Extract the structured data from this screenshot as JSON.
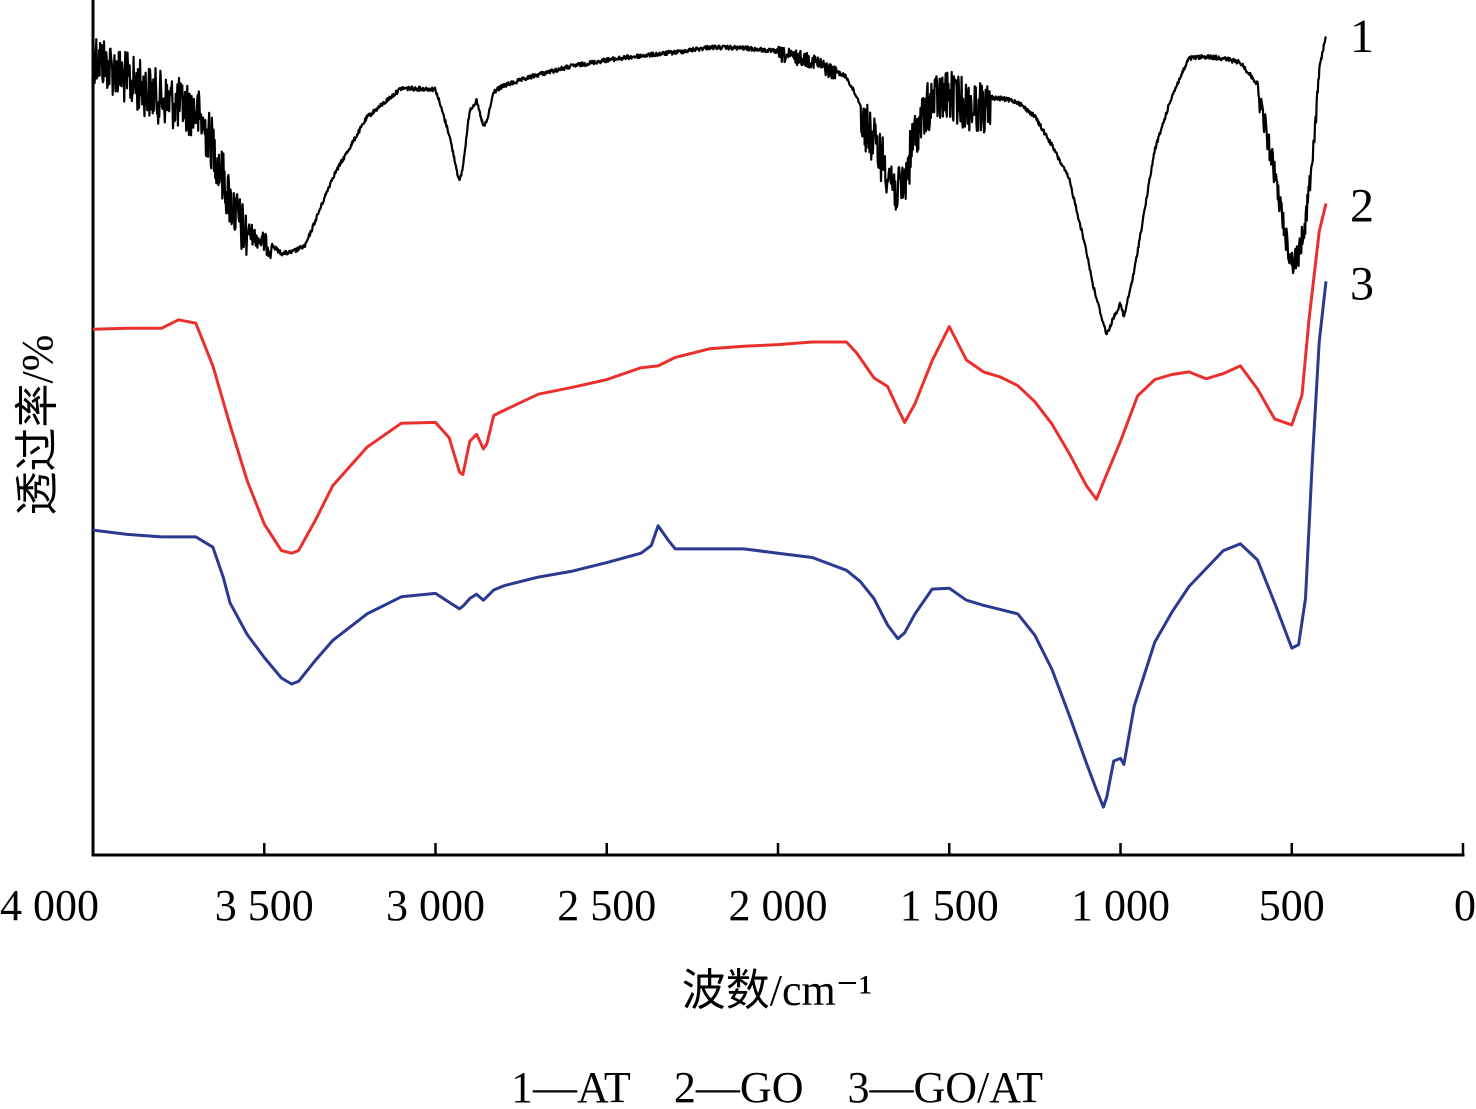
{
  "chart_data": {
    "type": "line",
    "xlabel": "波数/cm⁻¹",
    "ylabel": "透过率/%",
    "xlim": [
      4000,
      0
    ],
    "x_reversed": true,
    "xticks": [
      4000,
      3500,
      3000,
      2500,
      2000,
      1500,
      1000,
      500,
      0
    ],
    "xtick_labels": [
      "4 000",
      "3 500",
      "3 000",
      "2 500",
      "2 000",
      "1 500",
      "1 000",
      "500",
      "0"
    ],
    "ylim": [
      0,
      100
    ],
    "yticks_shown": false,
    "grid": false,
    "legend_text": "1—AT    2—GO    3—GO/AT",
    "legend_placement": "bottom-center",
    "series": [
      {
        "name": "1",
        "label": "1",
        "color": "#000000",
        "noisy": true,
        "x": [
          4000,
          3900,
          3800,
          3700,
          3650,
          3600,
          3550,
          3500,
          3450,
          3420,
          3380,
          3300,
          3200,
          3100,
          3000,
          2960,
          2930,
          2920,
          2900,
          2880,
          2860,
          2850,
          2830,
          2800,
          2700,
          2600,
          2500,
          2400,
          2300,
          2200,
          2100,
          2000,
          1900,
          1800,
          1760,
          1700,
          1680,
          1650,
          1630,
          1600,
          1550,
          1500,
          1450,
          1400,
          1350,
          1300,
          1250,
          1200,
          1150,
          1100,
          1080,
          1050,
          1040,
          1020,
          1000,
          990,
          960,
          900,
          850,
          800,
          750,
          700,
          650,
          600,
          550,
          520,
          500,
          480,
          460,
          440,
          420,
          400
        ],
        "y": [
          95.2,
          92.3,
          90.1,
          88.6,
          84.6,
          78.1,
          73.6,
          72.2,
          70.5,
          70.6,
          71.4,
          79.4,
          86.4,
          89.8,
          89.7,
          84.4,
          78.8,
          80.6,
          87.3,
          88.3,
          85.3,
          85.9,
          89.4,
          90.1,
          91.4,
          92.4,
          93.1,
          93.6,
          94.0,
          94.6,
          94.5,
          94.1,
          93.4,
          91.1,
          88.0,
          83.3,
          81.7,
          78.8,
          80.2,
          86.0,
          89.8,
          90.3,
          89.3,
          88.8,
          88.6,
          88.2,
          86.5,
          83.1,
          79.2,
          70.9,
          66.7,
          62.3,
          61.0,
          63.0,
          64.6,
          63.0,
          68.4,
          82.6,
          88.9,
          93.3,
          93.5,
          93.3,
          92.8,
          90.3,
          80.5,
          73.6,
          70.0,
          70.8,
          74.9,
          82.1,
          92.0,
          96.0
        ]
      },
      {
        "name": "2",
        "label": "2",
        "color": "#e8312f",
        "noisy": false,
        "x": [
          4000,
          3900,
          3800,
          3750,
          3700,
          3650,
          3600,
          3550,
          3500,
          3450,
          3420,
          3400,
          3350,
          3300,
          3200,
          3100,
          3000,
          2960,
          2930,
          2920,
          2900,
          2880,
          2860,
          2850,
          2830,
          2800,
          2700,
          2600,
          2500,
          2400,
          2350,
          2300,
          2200,
          2100,
          2000,
          1900,
          1800,
          1770,
          1720,
          1680,
          1650,
          1630,
          1600,
          1550,
          1500,
          1450,
          1400,
          1350,
          1300,
          1250,
          1200,
          1150,
          1100,
          1070,
          1050,
          1000,
          950,
          900,
          850,
          800,
          750,
          700,
          650,
          600,
          550,
          500,
          470,
          450,
          420,
          400
        ],
        "y": [
          61.5,
          61.6,
          61.6,
          62.6,
          62.2,
          57.2,
          50.3,
          43.8,
          38.7,
          35.6,
          35.3,
          35.6,
          39.2,
          43.2,
          47.7,
          50.5,
          50.6,
          48.8,
          44.8,
          44.5,
          48.4,
          49.2,
          47.5,
          48.1,
          51.4,
          52.0,
          53.9,
          54.7,
          55.6,
          57.0,
          57.2,
          58.2,
          59.2,
          59.5,
          59.7,
          60.0,
          60.0,
          58.7,
          55.8,
          54.8,
          52.2,
          50.6,
          52.8,
          57.8,
          61.8,
          57.9,
          56.5,
          55.9,
          54.9,
          53.0,
          50.4,
          47.0,
          43.2,
          41.6,
          43.6,
          48.4,
          53.7,
          55.6,
          56.2,
          56.5,
          55.7,
          56.3,
          57.2,
          54.5,
          51.0,
          50.3,
          53.8,
          62.5,
          72.9,
          76.2
        ]
      },
      {
        "name": "3",
        "label": "3",
        "color": "#2b3990",
        "noisy": false,
        "x": [
          4000,
          3900,
          3800,
          3700,
          3650,
          3620,
          3600,
          3550,
          3500,
          3450,
          3420,
          3400,
          3350,
          3300,
          3200,
          3100,
          3000,
          2950,
          2930,
          2920,
          2900,
          2880,
          2860,
          2850,
          2830,
          2800,
          2700,
          2600,
          2500,
          2400,
          2370,
          2350,
          2320,
          2300,
          2250,
          2200,
          2100,
          2000,
          1900,
          1800,
          1760,
          1720,
          1680,
          1650,
          1630,
          1600,
          1550,
          1500,
          1450,
          1400,
          1350,
          1300,
          1250,
          1200,
          1150,
          1100,
          1070,
          1050,
          1040,
          1020,
          1000,
          990,
          960,
          900,
          850,
          800,
          750,
          700,
          650,
          600,
          550,
          500,
          480,
          460,
          440,
          420,
          400
        ],
        "y": [
          38.0,
          37.5,
          37.2,
          37.2,
          36.0,
          32.5,
          29.5,
          25.8,
          23.1,
          20.7,
          20.0,
          20.3,
          22.8,
          25.1,
          28.2,
          30.2,
          30.6,
          29.3,
          28.8,
          29.1,
          30.0,
          30.5,
          29.8,
          30.2,
          31.0,
          31.5,
          32.5,
          33.2,
          34.2,
          35.3,
          36.2,
          38.5,
          36.8,
          35.8,
          35.8,
          35.8,
          35.8,
          35.3,
          34.8,
          33.3,
          32.0,
          30.0,
          26.9,
          25.3,
          26.0,
          28.2,
          31.1,
          31.2,
          29.8,
          29.2,
          28.7,
          28.2,
          25.7,
          21.7,
          16.4,
          10.8,
          7.6,
          5.6,
          6.8,
          11.0,
          11.3,
          10.6,
          17.4,
          24.9,
          28.4,
          31.4,
          33.5,
          35.6,
          36.4,
          34.5,
          29.5,
          24.2,
          24.6,
          30.0,
          46.0,
          60.0,
          67.1
        ]
      }
    ]
  }
}
